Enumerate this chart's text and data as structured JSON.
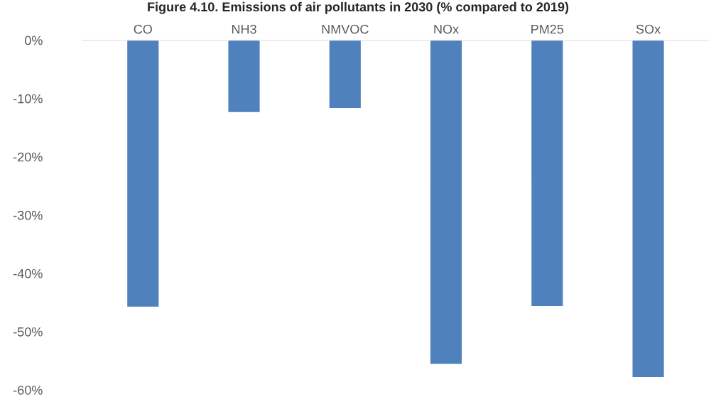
{
  "chart_data": {
    "type": "bar",
    "title": "Figure 4.10. Emissions of air pollutants in 2030 (% compared to 2019)",
    "categories": [
      "CO",
      "NH3",
      "NMVOC",
      "NOx",
      "PM25",
      "SOx"
    ],
    "values": [
      -45.8,
      -12.4,
      -11.7,
      -55.6,
      -45.7,
      -57.9
    ],
    "color": "#4f81bd",
    "ylim": [
      -60,
      0
    ],
    "yticks": [
      {
        "value": 0,
        "label": "0%"
      },
      {
        "value": -10,
        "label": "-10%"
      },
      {
        "value": -20,
        "label": "-20%"
      },
      {
        "value": -30,
        "label": "-30%"
      },
      {
        "value": -40,
        "label": "-40%"
      },
      {
        "value": -50,
        "label": "-50%"
      },
      {
        "value": -60,
        "label": "-60%"
      }
    ],
    "grid": false
  }
}
